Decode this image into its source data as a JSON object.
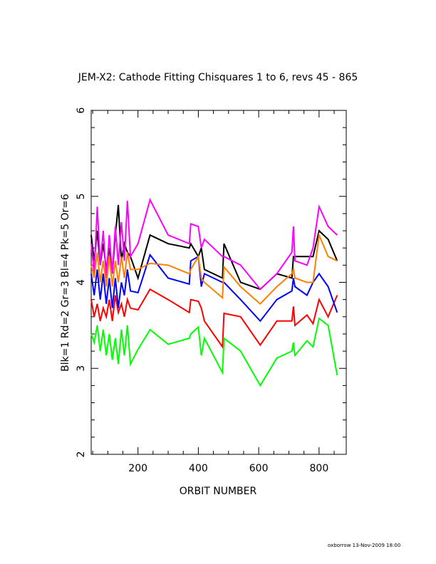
{
  "chart_data": {
    "type": "line",
    "title": "JEM-X2: Cathode Fitting Chisquares 1 to 6, revs 45 - 865",
    "xlabel": "ORBIT NUMBER",
    "ylabel": "Blk=1 Rd=2 Gr=3 Bl=4 Pk=5 Or=6",
    "xlim": [
      45,
      890
    ],
    "ylim": [
      2,
      6
    ],
    "xticks": [
      200,
      400,
      600,
      800
    ],
    "yticks": [
      2,
      3,
      4,
      5,
      6
    ],
    "grid": false,
    "x": [
      45,
      55,
      65,
      75,
      85,
      95,
      105,
      115,
      125,
      135,
      145,
      155,
      165,
      175,
      200,
      240,
      300,
      370,
      375,
      400,
      410,
      420,
      480,
      485,
      540,
      605,
      660,
      710,
      715,
      720,
      760,
      780,
      800,
      830,
      860
    ],
    "series": [
      {
        "color": "#000000",
        "values": [
          4.55,
          4.25,
          4.6,
          4.2,
          4.45,
          4.15,
          4.4,
          4.1,
          4.55,
          4.9,
          4.25,
          4.45,
          4.35,
          4.3,
          4.05,
          4.55,
          4.45,
          4.4,
          4.45,
          4.3,
          4.4,
          4.15,
          4.05,
          4.45,
          4.0,
          3.92,
          4.1,
          4.05,
          4.3,
          4.3,
          4.3,
          4.3,
          4.6,
          4.5,
          4.25
        ]
      },
      {
        "color": "#ff0000",
        "values": [
          3.8,
          3.6,
          3.75,
          3.55,
          3.7,
          3.6,
          3.8,
          3.55,
          3.85,
          3.65,
          3.75,
          3.6,
          3.8,
          3.7,
          3.68,
          3.92,
          3.8,
          3.65,
          3.8,
          3.78,
          3.7,
          3.55,
          3.25,
          3.64,
          3.6,
          3.27,
          3.55,
          3.55,
          3.72,
          3.5,
          3.62,
          3.52,
          3.8,
          3.6,
          3.85
        ]
      },
      {
        "color": "#00ff00",
        "values": [
          3.4,
          3.3,
          3.5,
          3.2,
          3.45,
          3.15,
          3.4,
          3.1,
          3.35,
          3.05,
          3.45,
          3.15,
          3.5,
          3.05,
          3.22,
          3.45,
          3.28,
          3.35,
          3.4,
          3.48,
          3.15,
          3.35,
          2.95,
          3.35,
          3.2,
          2.8,
          3.12,
          3.2,
          3.3,
          3.15,
          3.32,
          3.25,
          3.58,
          3.5,
          2.92
        ]
      },
      {
        "color": "#0000ff",
        "values": [
          4.1,
          3.85,
          4.15,
          3.8,
          4.1,
          3.75,
          4.05,
          3.7,
          4.05,
          3.7,
          4.0,
          3.85,
          4.15,
          3.9,
          3.88,
          4.32,
          4.05,
          3.98,
          4.25,
          4.3,
          3.95,
          4.1,
          4.0,
          4.0,
          3.8,
          3.55,
          3.8,
          3.9,
          4.05,
          3.95,
          3.85,
          4.0,
          4.1,
          3.95,
          3.65
        ]
      },
      {
        "color": "#ff00ff",
        "values": [
          4.45,
          4.1,
          4.88,
          4.2,
          4.6,
          4.05,
          4.55,
          4.1,
          4.65,
          4.2,
          4.7,
          4.25,
          4.95,
          4.3,
          4.45,
          4.96,
          4.55,
          4.45,
          4.68,
          4.65,
          4.4,
          4.5,
          4.3,
          4.3,
          4.2,
          3.92,
          4.1,
          4.35,
          4.65,
          4.25,
          4.2,
          4.4,
          4.88,
          4.65,
          4.55
        ]
      },
      {
        "color": "#ff8000",
        "values": [
          4.2,
          4.05,
          4.35,
          4.0,
          4.25,
          3.95,
          4.3,
          3.95,
          4.25,
          4.0,
          4.3,
          4.05,
          4.35,
          4.15,
          4.15,
          4.22,
          4.2,
          4.1,
          4.15,
          4.3,
          4.05,
          4.0,
          3.82,
          4.18,
          3.95,
          3.75,
          3.95,
          4.1,
          4.15,
          4.05,
          4.0,
          4.0,
          4.55,
          4.3,
          4.25
        ]
      }
    ]
  },
  "footer": "oxborrow 13-Nov-2009 18:00"
}
